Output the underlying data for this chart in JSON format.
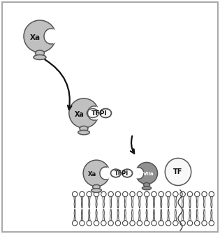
{
  "bg_color": "#f2f2f2",
  "border_color": "#999999",
  "protein_fill_light": "#c0c0c0",
  "protein_fill_dark": "#909090",
  "protein_fill_white": "#f8f8f8",
  "protein_stroke": "#555555",
  "membrane_stroke": "#444444",
  "text_color": "#111111",
  "arrow_color": "#111111",
  "labels": {
    "xa1": "Xa",
    "xa2": "Xa",
    "xa3": "Xa",
    "tfpi1": "TFPI",
    "tfpi2": "TFPI",
    "viia": "VIIa",
    "tf": "TF"
  },
  "font_size": 7.5,
  "lw": 1.1
}
